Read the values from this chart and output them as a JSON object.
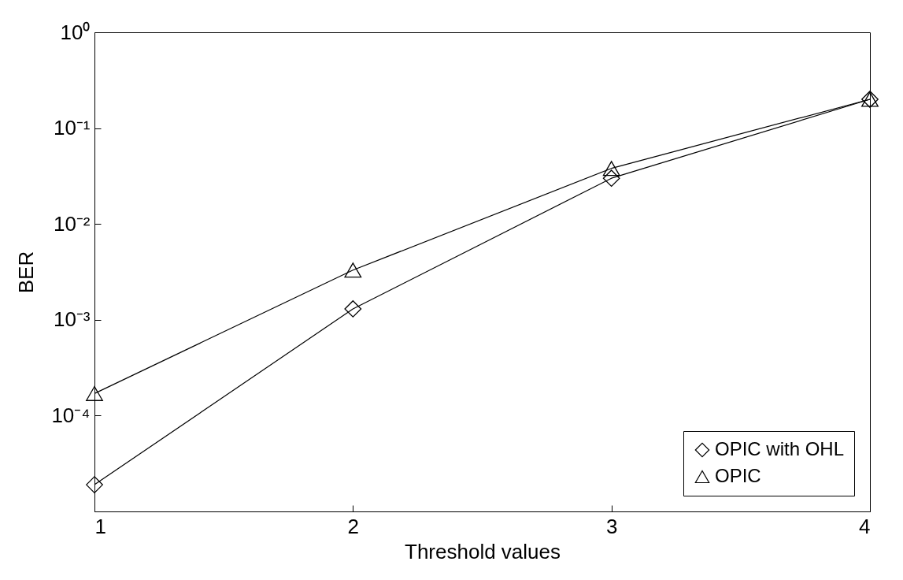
{
  "chart_data": {
    "type": "line",
    "xlabel": "Threshold values",
    "ylabel": "BER",
    "x": [
      1,
      2,
      3,
      4
    ],
    "series": [
      {
        "name": "OPIC with OHL",
        "color": "#000000",
        "marker": "diamond",
        "values": [
          1.9e-05,
          0.0013,
          0.03,
          0.2
        ]
      },
      {
        "name": "OPIC",
        "color": "#000000",
        "marker": "triangle",
        "values": [
          0.00017,
          0.0033,
          0.038,
          0.2
        ]
      }
    ],
    "xlim": [
      1,
      4
    ],
    "xticks": [
      1,
      2,
      3,
      4
    ],
    "ylim": [
      1e-05,
      1
    ],
    "yticks": [
      {
        "value": 1,
        "label": "10⁰"
      },
      {
        "value": 0.1,
        "label": "10⁻¹"
      },
      {
        "value": 0.01,
        "label": "10⁻²"
      },
      {
        "value": 0.001,
        "label": "10⁻³"
      },
      {
        "value": 0.0001,
        "label": "10⁻⁴"
      }
    ],
    "log": true,
    "grid": false,
    "legend": "bottom right",
    "line_style": "solid"
  }
}
